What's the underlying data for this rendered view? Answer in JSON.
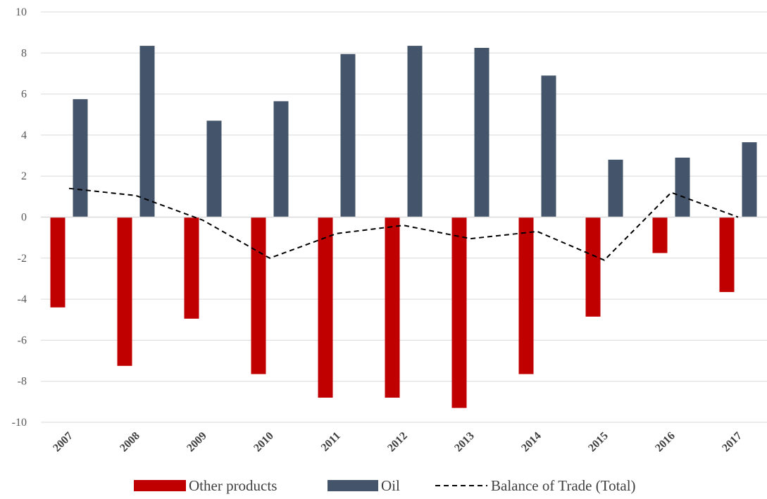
{
  "chart_data": {
    "type": "bar",
    "title": "",
    "xlabel": "",
    "ylabel": "",
    "ylim": [
      -10,
      10
    ],
    "yticks": [
      10,
      8,
      6,
      4,
      2,
      0,
      -2,
      -4,
      -6,
      -8,
      -10
    ],
    "grid": true,
    "legend_position": "bottom",
    "categories": [
      "2007",
      "2008",
      "2009",
      "2010",
      "2011",
      "2012",
      "2013",
      "2014",
      "2015",
      "2016",
      "2017"
    ],
    "series": [
      {
        "name": "Other products",
        "type": "bar",
        "color": "#C00000",
        "values": [
          -4.4,
          -7.25,
          -4.95,
          -7.65,
          -8.8,
          -8.8,
          -9.3,
          -7.65,
          -4.85,
          -1.75,
          -3.65
        ]
      },
      {
        "name": "Oil",
        "type": "bar",
        "color": "#44546A",
        "values": [
          5.75,
          8.35,
          4.7,
          5.65,
          7.95,
          8.35,
          8.25,
          6.9,
          2.8,
          2.9,
          3.65
        ]
      },
      {
        "name": "Balance of Trade (Total)",
        "type": "line",
        "style": "dashed",
        "color": "#000000",
        "values": [
          1.4,
          1.05,
          -0.15,
          -2.0,
          -0.8,
          -0.4,
          -1.05,
          -0.7,
          -2.1,
          1.2,
          0.0
        ]
      }
    ]
  }
}
